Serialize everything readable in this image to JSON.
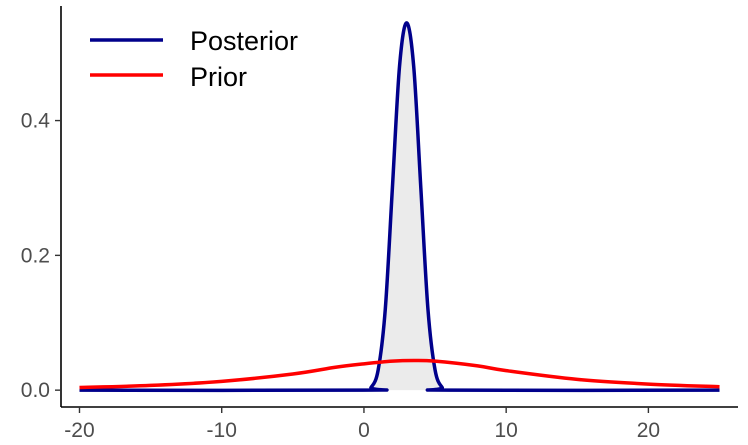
{
  "chart_data": {
    "type": "line",
    "title": "",
    "xlabel": "",
    "ylabel": "",
    "xlim": [
      -21.3,
      26.3
    ],
    "ylim": [
      -0.025,
      0.57
    ],
    "x_ticks": [
      -20,
      -10,
      0,
      10,
      20
    ],
    "y_ticks": [
      0.0,
      0.2,
      0.4
    ],
    "x_tick_labels": [
      "-20",
      "-10",
      "0",
      "10",
      "20"
    ],
    "y_tick_labels": [
      "0.0",
      "0.2",
      "0.4"
    ],
    "grid": false,
    "legend_position": "top-left",
    "series": [
      {
        "name": "Posterior",
        "color": "#00008B",
        "shaded": true,
        "fill_color": "#ebebeb",
        "x": [
          -20,
          0,
          0.5,
          1.0,
          1.5,
          2.0,
          2.5,
          3.0,
          3.5,
          4.0,
          4.5,
          5.0,
          5.5,
          6.0,
          25
        ],
        "values": [
          0,
          0,
          0.004,
          0.03,
          0.12,
          0.3,
          0.48,
          0.545,
          0.48,
          0.3,
          0.12,
          0.03,
          0.004,
          0,
          0
        ]
      },
      {
        "name": "Prior",
        "color": "#FF0000",
        "shaded": false,
        "x": [
          -20,
          -15,
          -10,
          -5,
          -2,
          0,
          2,
          3.5,
          5,
          8,
          10,
          15,
          20,
          25
        ],
        "values": [
          0.004,
          0.007,
          0.013,
          0.024,
          0.034,
          0.039,
          0.043,
          0.044,
          0.043,
          0.036,
          0.029,
          0.016,
          0.009,
          0.005
        ]
      }
    ]
  }
}
